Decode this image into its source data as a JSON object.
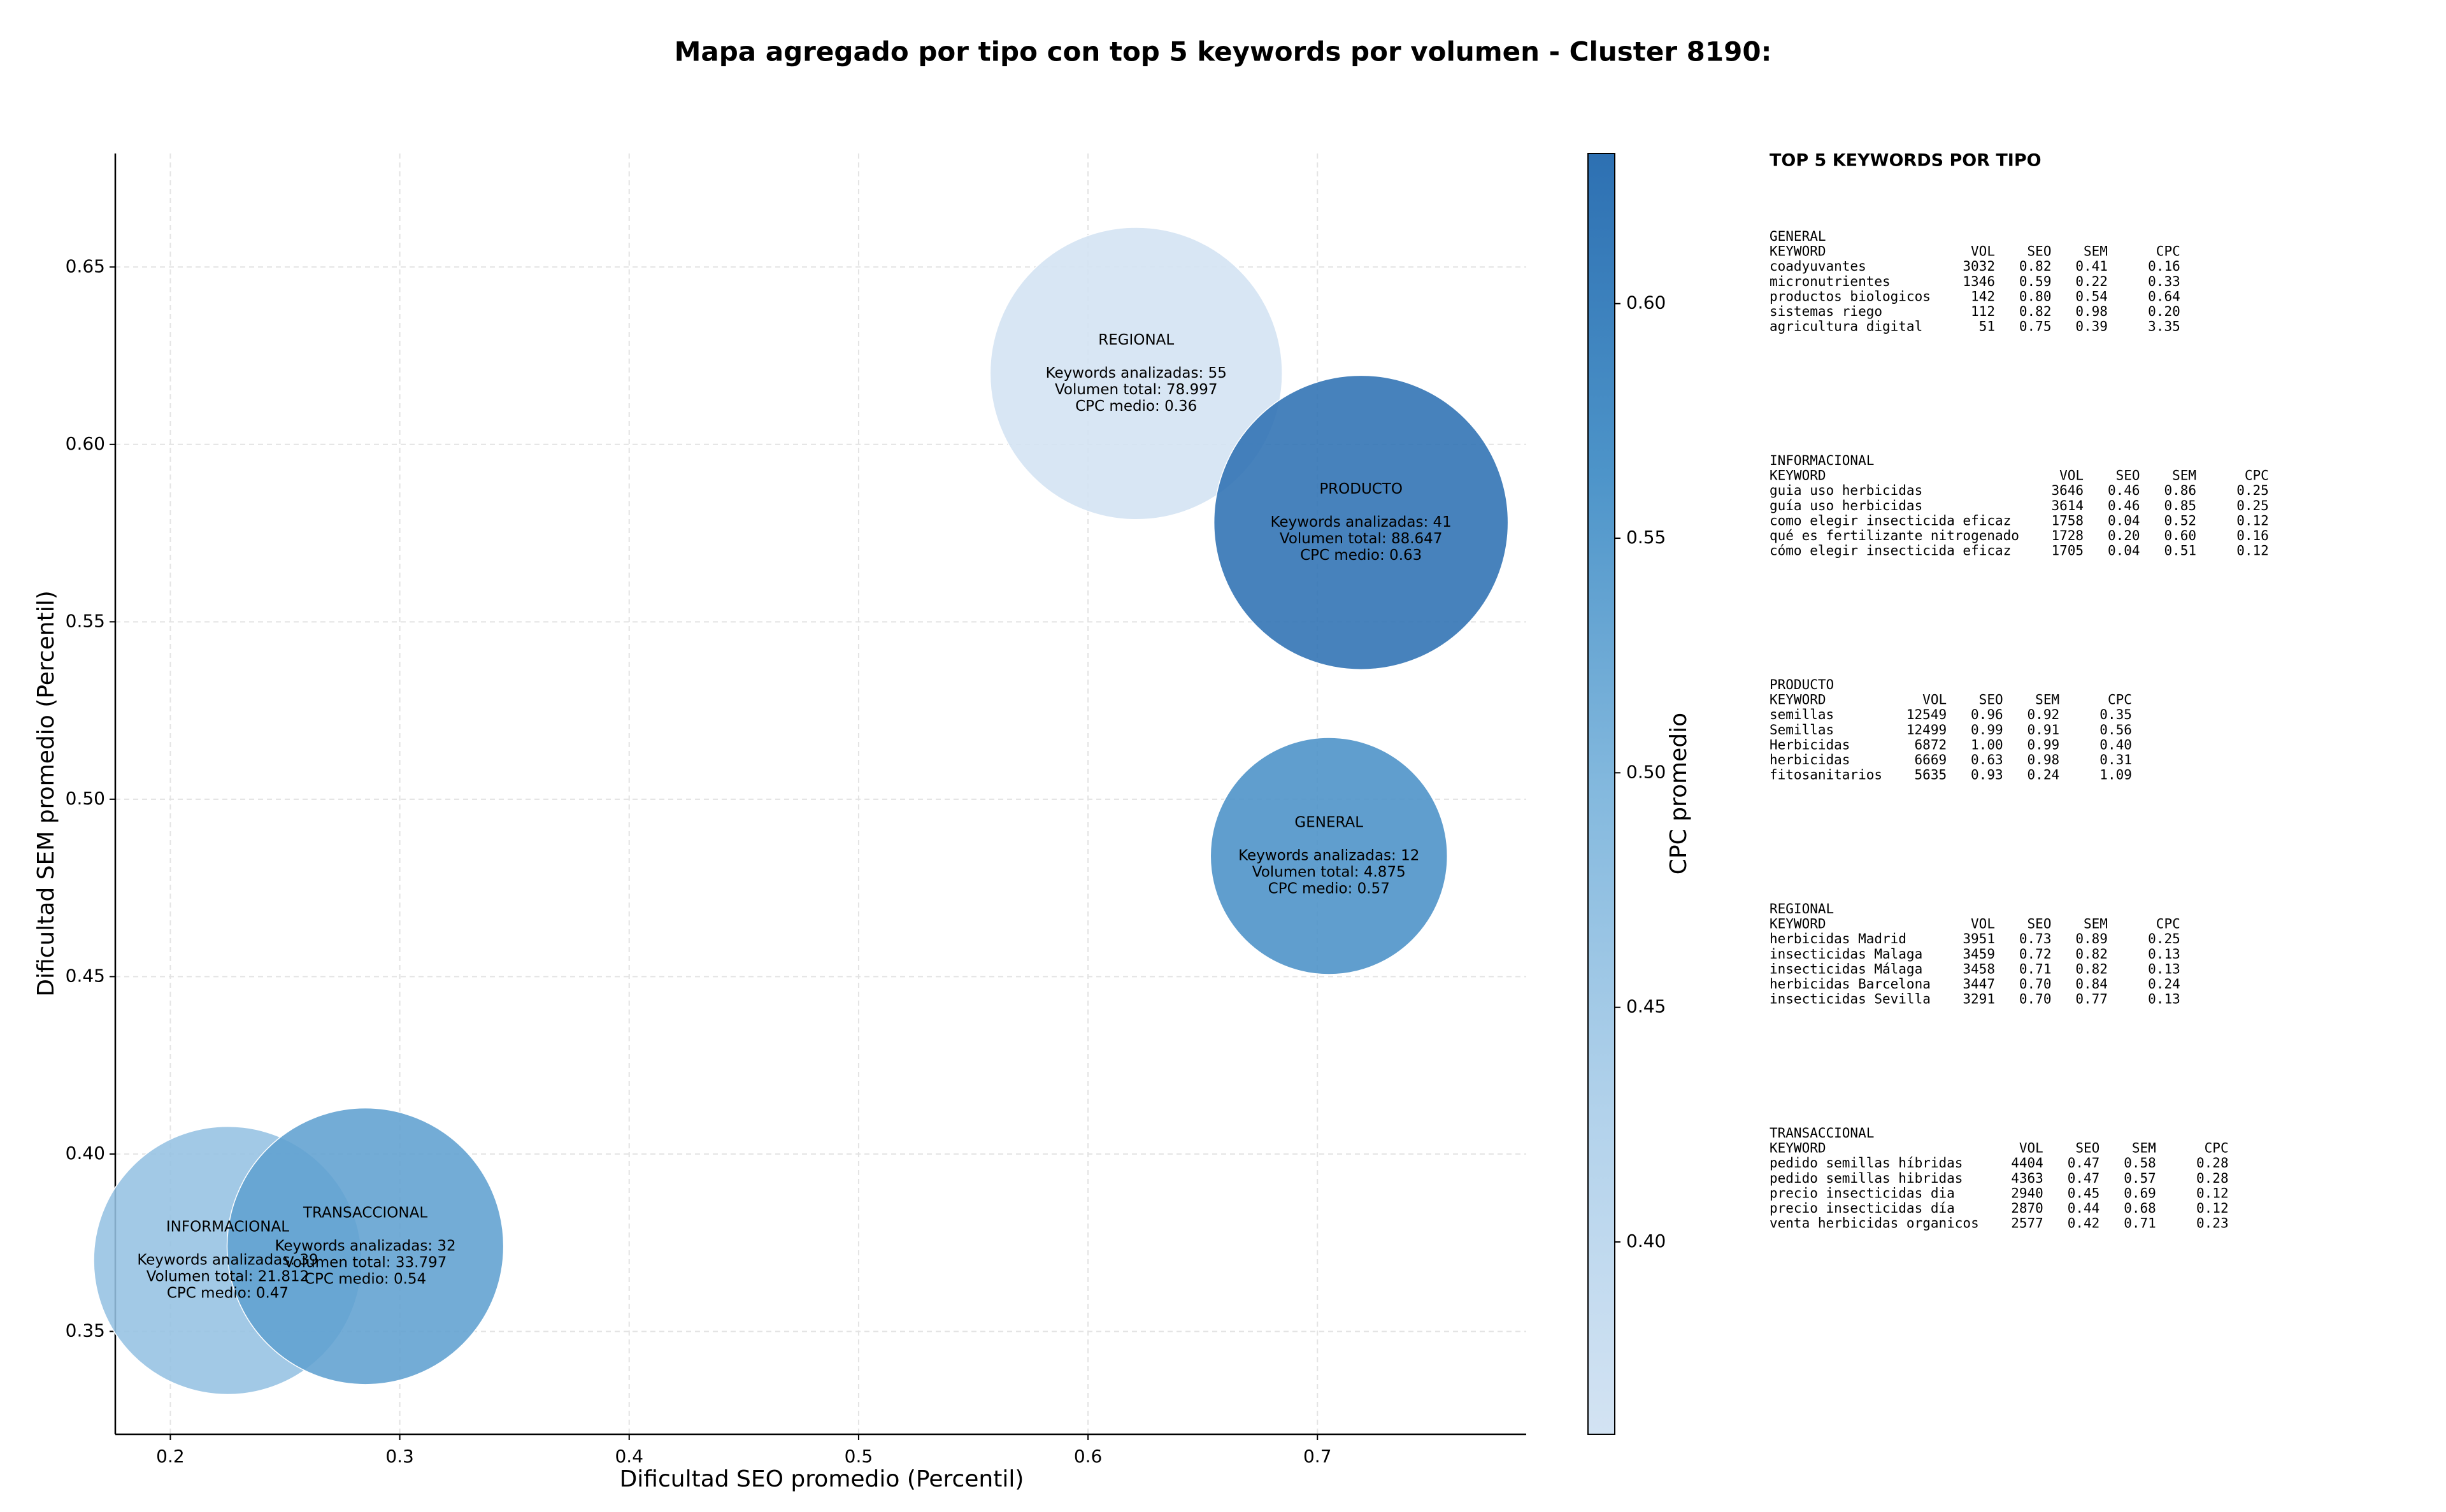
{
  "chart_data": {
    "type": "bubble",
    "title": "Mapa agregado por tipo con top 5 keywords por volumen - Cluster 8190:",
    "xlabel": "Dificultad SEO promedio (Percentil)",
    "ylabel": "Dificultad SEM promedio (Percentil)",
    "colorbar_label": "CPC promedio",
    "categories": [
      "REGIONAL",
      "PRODUCTO",
      "GENERAL",
      "INFORMACIONAL",
      "TRANSACCIONAL"
    ],
    "x": [
      0.621,
      0.719,
      0.705,
      0.225,
      0.285
    ],
    "y": [
      0.62,
      0.578,
      0.484,
      0.37,
      0.374
    ],
    "volumes": [
      78997,
      88647,
      4875,
      21812,
      33797
    ],
    "cpc": [
      0.36,
      0.63,
      0.57,
      0.47,
      0.54
    ],
    "label_lines": [
      [
        "Keywords analizadas: 55",
        "Volumen total: 78.997",
        "CPC medio: 0.36"
      ],
      [
        "Keywords analizadas: 41",
        "Volumen total: 88.647",
        "CPC medio: 0.63"
      ],
      [
        "Keywords analizadas: 12",
        "Volumen total: 4.875",
        "CPC medio: 0.57"
      ],
      [
        "Keywords analizadas: 39",
        "Volumen total: 21.812",
        "CPC medio: 0.47"
      ],
      [
        "Keywords analizadas: 32",
        "Volumen total: 33.797",
        "CPC medio: 0.54"
      ]
    ],
    "xlim": [
      0.176,
      0.791
    ],
    "ylim": [
      0.321,
      0.682
    ],
    "xticks": [
      0.2,
      0.3,
      0.4,
      0.5,
      0.6,
      0.7
    ],
    "yticks": [
      0.35,
      {
        "value": 0.4,
        "label": "0.40"
      },
      0.45,
      {
        "value": 0.5,
        "label": "0.50"
      },
      0.55,
      {
        "value": 0.6,
        "label": "0.60"
      },
      0.65
    ],
    "clim": [
      0.359,
      0.632
    ],
    "cticks": [
      {
        "value": 0.4,
        "label": "0.40"
      },
      0.45,
      {
        "value": 0.5,
        "label": "0.50"
      },
      0.55,
      {
        "value": 0.6,
        "label": "0.60"
      }
    ],
    "colormap": [
      "#d3e3f3",
      "#b2d2eb",
      "#84b9de",
      "#4d94c9",
      "#2d70b2"
    ],
    "grid": true
  },
  "keyword_panel": {
    "title": "TOP 5 KEYWORDS POR TIPO",
    "columns": [
      "KEYWORD",
      "VOL",
      "SEO",
      "SEM",
      "CPC"
    ],
    "sections": [
      {
        "name": "GENERAL",
        "rows": [
          [
            "coadyuvantes",
            "3032",
            "0.82",
            "0.41",
            "0.16"
          ],
          [
            "micronutrientes",
            "1346",
            "0.59",
            "0.22",
            "0.33"
          ],
          [
            "productos biologicos",
            "142",
            "0.80",
            "0.54",
            "0.64"
          ],
          [
            "sistemas riego",
            "112",
            "0.82",
            "0.98",
            "0.20"
          ],
          [
            "agricultura digital",
            "51",
            "0.75",
            "0.39",
            "3.35"
          ]
        ]
      },
      {
        "name": "INFORMACIONAL",
        "rows": [
          [
            "guia uso herbicidas",
            "3646",
            "0.46",
            "0.86",
            "0.25"
          ],
          [
            "guía uso herbicidas",
            "3614",
            "0.46",
            "0.85",
            "0.25"
          ],
          [
            "como elegir insecticida eficaz",
            "1758",
            "0.04",
            "0.52",
            "0.12"
          ],
          [
            "qué es fertilizante nitrogenado",
            "1728",
            "0.20",
            "0.60",
            "0.16"
          ],
          [
            "cómo elegir insecticida eficaz",
            "1705",
            "0.04",
            "0.51",
            "0.12"
          ]
        ]
      },
      {
        "name": "PRODUCTO",
        "rows": [
          [
            "semillas",
            "12549",
            "0.96",
            "0.92",
            "0.35"
          ],
          [
            "Semillas",
            "12499",
            "0.99",
            "0.91",
            "0.56"
          ],
          [
            "Herbicidas",
            "6872",
            "1.00",
            "0.99",
            "0.40"
          ],
          [
            "herbicidas",
            "6669",
            "0.63",
            "0.98",
            "0.31"
          ],
          [
            "fitosanitarios",
            "5635",
            "0.93",
            "0.24",
            "1.09"
          ]
        ]
      },
      {
        "name": "REGIONAL",
        "rows": [
          [
            "herbicidas Madrid",
            "3951",
            "0.73",
            "0.89",
            "0.25"
          ],
          [
            "insecticidas Malaga",
            "3459",
            "0.72",
            "0.82",
            "0.13"
          ],
          [
            "insecticidas Málaga",
            "3458",
            "0.71",
            "0.82",
            "0.13"
          ],
          [
            "herbicidas Barcelona",
            "3447",
            "0.70",
            "0.84",
            "0.24"
          ],
          [
            "insecticidas Sevilla",
            "3291",
            "0.70",
            "0.77",
            "0.13"
          ]
        ]
      },
      {
        "name": "TRANSACCIONAL",
        "rows": [
          [
            "pedido semillas híbridas",
            "4404",
            "0.47",
            "0.58",
            "0.28"
          ],
          [
            "pedido semillas hibridas",
            "4363",
            "0.47",
            "0.57",
            "0.28"
          ],
          [
            "precio insecticidas dia",
            "2940",
            "0.45",
            "0.69",
            "0.12"
          ],
          [
            "precio insecticidas día",
            "2870",
            "0.44",
            "0.68",
            "0.12"
          ],
          [
            "venta herbicidas organicos",
            "2577",
            "0.42",
            "0.71",
            "0.23"
          ]
        ]
      }
    ]
  }
}
